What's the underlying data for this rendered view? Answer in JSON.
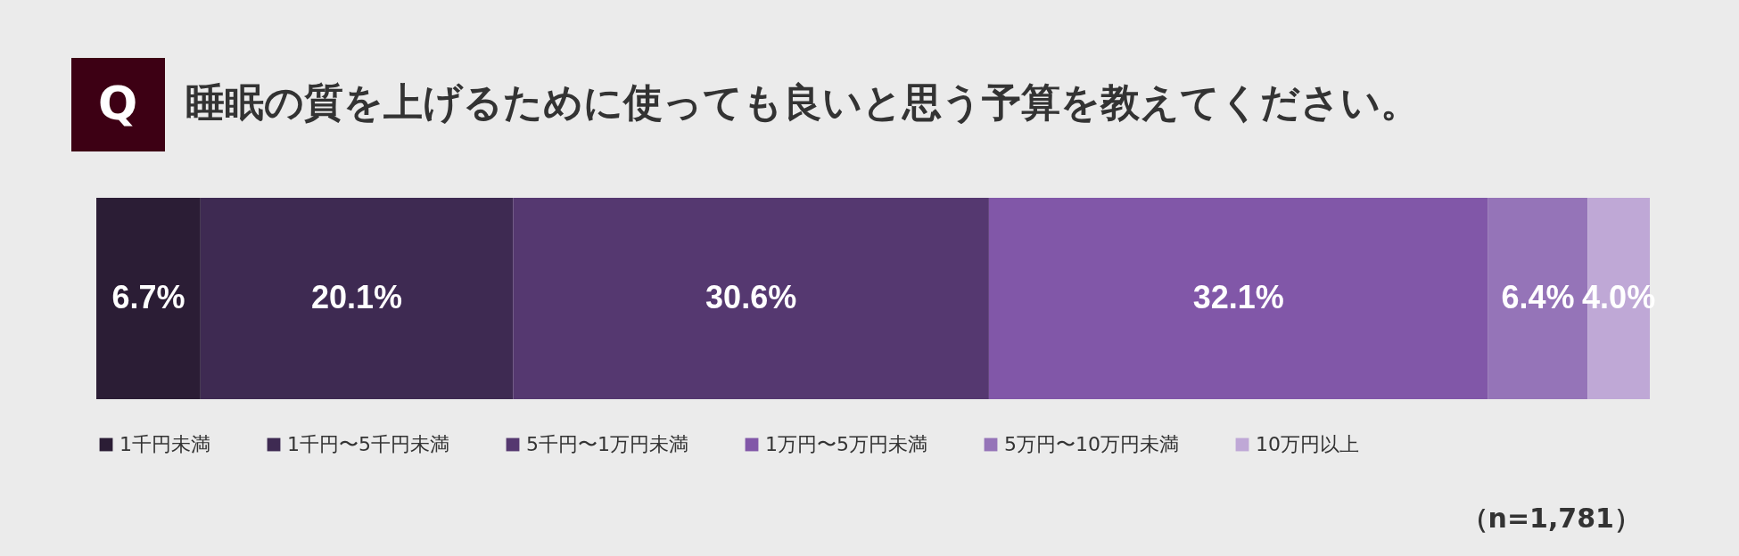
{
  "chart_data": {
    "type": "bar",
    "orientation": "horizontal",
    "stacked": true,
    "title": "睡眠の質を上げるために使っても良いと思う予算を教えてください。",
    "categories": [
      null
    ],
    "legend": "bottom",
    "series": [
      {
        "name": "1千円未満",
        "color": "#2b1d35",
        "values": [
          6.7
        ],
        "value_labels": [
          "6.7%"
        ]
      },
      {
        "name": "1千円〜5千円未満",
        "color": "#3e2a52",
        "values": [
          20.1
        ],
        "value_labels": [
          "20.1%"
        ]
      },
      {
        "name": "5千円〜1万円未満",
        "color": "#553870",
        "values": [
          30.6
        ],
        "value_labels": [
          "30.6%"
        ]
      },
      {
        "name": "1万円〜5万円未満",
        "color": "#8157a8",
        "values": [
          32.1
        ],
        "value_labels": [
          "32.1%"
        ]
      },
      {
        "name": "5万円〜10万円未満",
        "color": "#9574b8",
        "values": [
          6.4
        ],
        "value_labels": [
          "6.4%"
        ]
      },
      {
        "name": "10万円以上",
        "color": "#bfa8d6",
        "values": [
          4.0
        ],
        "value_labels": [
          "4.0%"
        ]
      }
    ],
    "annotations": [
      "Q",
      "（n=1,781）"
    ]
  }
}
